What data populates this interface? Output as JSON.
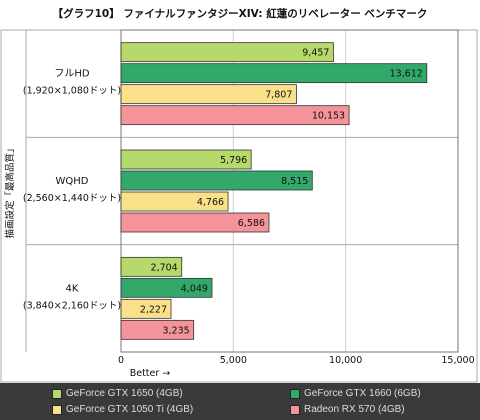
{
  "chart_data": {
    "type": "bar",
    "orientation": "horizontal",
    "title": "【グラフ10】 ファイナルファンタジーXIV: 紅蓮のリベレーター ベンチマーク",
    "ylabel": "描画設定「最高品質」",
    "xlabel": "Better →",
    "xlim": [
      0,
      15000
    ],
    "xticks": [
      "0",
      "5,000",
      "10,000",
      "15,000"
    ],
    "tick_values": [
      0,
      5000,
      10000,
      15000
    ],
    "categories": [
      {
        "name": "フルHD",
        "sub": "(1,920×1,080ドット)"
      },
      {
        "name": "WQHD",
        "sub": "(2,560×1,440ドット)"
      },
      {
        "name": "4K",
        "sub": "(3,840×2,160ドット)"
      }
    ],
    "series": [
      {
        "name": "GeForce GTX 1650 (4GB)",
        "color": "#b5d96a",
        "values": [
          9457,
          5796,
          2704
        ],
        "labels": [
          "9,457",
          "5,796",
          "2,704"
        ]
      },
      {
        "name": "GeForce GTX 1660 (6GB)",
        "color": "#33a86b",
        "values": [
          13612,
          8515,
          4049
        ],
        "labels": [
          "13,612",
          "8,515",
          "4,049"
        ]
      },
      {
        "name": "GeForce GTX 1050 Ti (4GB)",
        "color": "#fbe08a",
        "values": [
          7807,
          4766,
          2227
        ],
        "labels": [
          "7,807",
          "4,766",
          "2,227"
        ]
      },
      {
        "name": "Radeon RX 570 (4GB)",
        "color": "#f4939a",
        "values": [
          10153,
          6586,
          3235
        ],
        "labels": [
          "10,153",
          "6,586",
          "3,235"
        ]
      }
    ],
    "grid": true,
    "legend_position": "bottom"
  }
}
